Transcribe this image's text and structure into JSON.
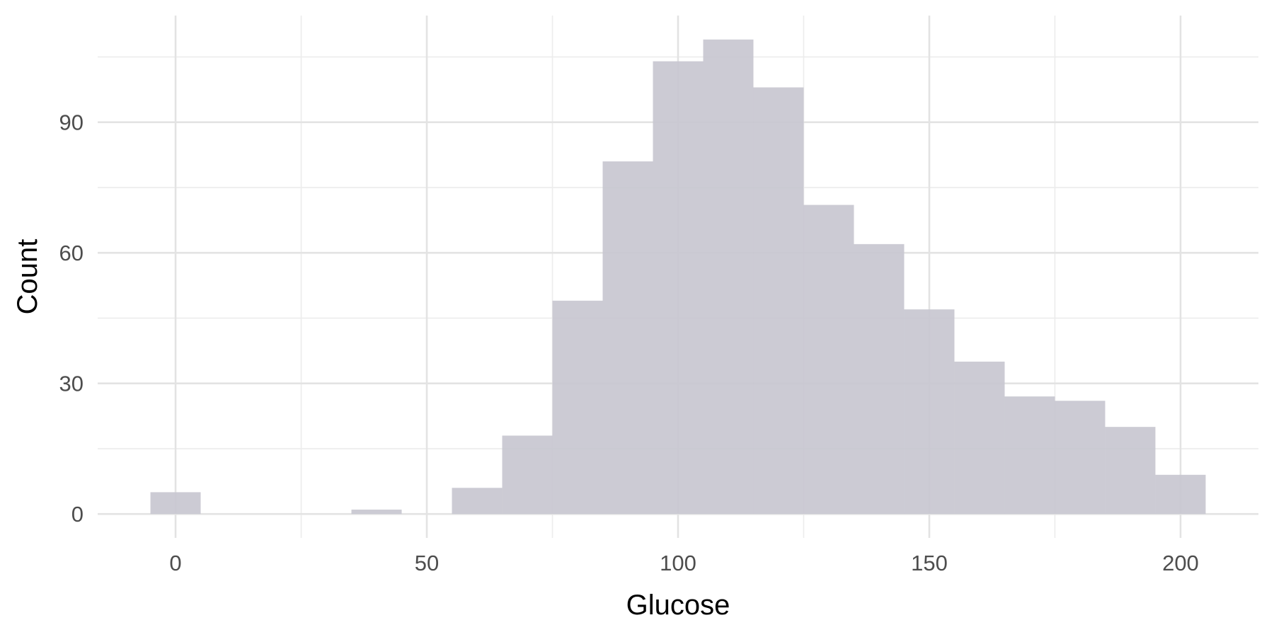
{
  "chart_data": {
    "type": "bar",
    "subtype": "histogram",
    "title": "",
    "xlabel": "Glucose",
    "ylabel": "Count",
    "bin_width": 10,
    "bins": [
      {
        "x0": -5,
        "x1": 5,
        "count": 5
      },
      {
        "x0": 5,
        "x1": 15,
        "count": 0
      },
      {
        "x0": 15,
        "x1": 25,
        "count": 0
      },
      {
        "x0": 25,
        "x1": 35,
        "count": 0
      },
      {
        "x0": 35,
        "x1": 45,
        "count": 1
      },
      {
        "x0": 45,
        "x1": 55,
        "count": 0
      },
      {
        "x0": 55,
        "x1": 65,
        "count": 6
      },
      {
        "x0": 65,
        "x1": 75,
        "count": 18
      },
      {
        "x0": 75,
        "x1": 85,
        "count": 49
      },
      {
        "x0": 85,
        "x1": 95,
        "count": 81
      },
      {
        "x0": 95,
        "x1": 105,
        "count": 104
      },
      {
        "x0": 105,
        "x1": 115,
        "count": 109
      },
      {
        "x0": 115,
        "x1": 125,
        "count": 98
      },
      {
        "x0": 125,
        "x1": 135,
        "count": 71
      },
      {
        "x0": 135,
        "x1": 145,
        "count": 62
      },
      {
        "x0": 145,
        "x1": 155,
        "count": 47
      },
      {
        "x0": 155,
        "x1": 165,
        "count": 35
      },
      {
        "x0": 165,
        "x1": 175,
        "count": 27
      },
      {
        "x0": 175,
        "x1": 185,
        "count": 26
      },
      {
        "x0": 185,
        "x1": 195,
        "count": 20
      },
      {
        "x0": 195,
        "x1": 205,
        "count": 9
      }
    ],
    "xlim": [
      -15.5,
      215.5
    ],
    "ylim": [
      -5.5,
      114.5
    ],
    "x_ticks": [
      0,
      50,
      100,
      150,
      200
    ],
    "x_tick_labels": [
      "0",
      "50",
      "100",
      "150",
      "200"
    ],
    "x_minor_ticks": [
      25,
      75,
      125,
      175
    ],
    "y_ticks": [
      0,
      30,
      60,
      90
    ],
    "y_tick_labels": [
      "0",
      "30",
      "60",
      "90"
    ],
    "y_minor_ticks": [
      15,
      45,
      75,
      105
    ],
    "grid": true,
    "legend": "none",
    "bar_color": "#c7c5cf",
    "background": "#ffffff"
  }
}
